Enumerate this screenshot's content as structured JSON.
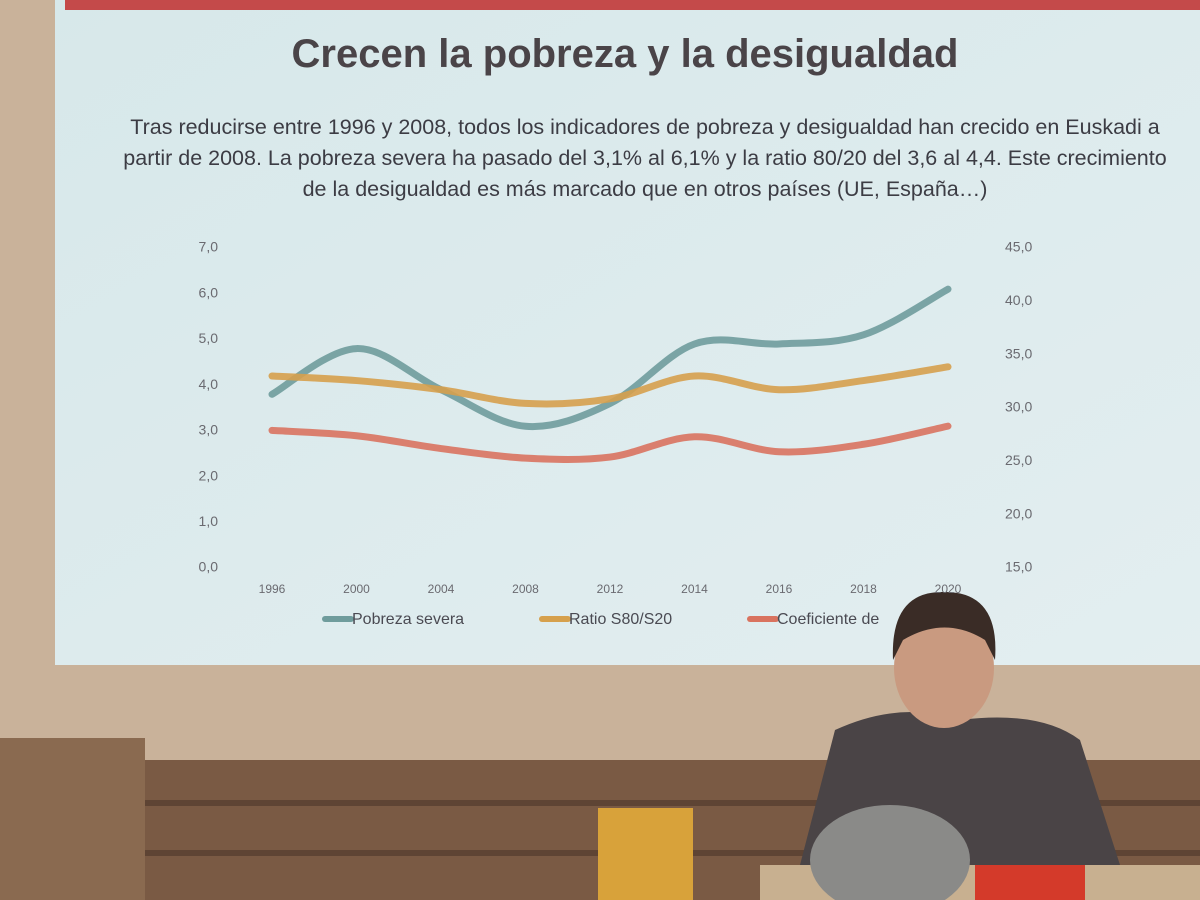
{
  "chart_data": {
    "type": "line",
    "title": "Crecen la pobreza y la desigualdad",
    "subtitle": "Tras reducirse entre 1996 y 2008, todos los indicadores de pobreza y desigualdad han crecido en Euskadi a partir de 2008. La pobreza severa ha pasado del 3,1% al 6,1% y la ratio 80/20 del 3,6 al 4,4. Este crecimiento de la desigualdad es más marcado que en otros países (UE, España…)",
    "categories": [
      "1996",
      "2000",
      "2004",
      "2008",
      "2012",
      "2014",
      "2016",
      "2018",
      "2020"
    ],
    "series": [
      {
        "name": "Pobreza severa",
        "color": "#6f9c9c",
        "values": [
          3.8,
          4.8,
          3.9,
          3.1,
          3.6,
          4.9,
          4.9,
          5.1,
          6.1
        ]
      },
      {
        "name": "Ratio S80/S20",
        "color": "#d6a04c",
        "values": [
          4.2,
          4.1,
          3.9,
          3.6,
          3.7,
          4.2,
          3.9,
          4.1,
          4.4
        ]
      },
      {
        "name": "Coeficiente de",
        "color": "#d9735f",
        "axis": "y2",
        "values": [
          27.9,
          27.4,
          26.2,
          25.3,
          25.4,
          27.3,
          25.9,
          26.6,
          28.3
        ]
      }
    ],
    "ylim": [
      0,
      7
    ],
    "yticks": [
      {
        "value": 0,
        "label": "0,0"
      },
      {
        "value": 1,
        "label": "1,0"
      },
      {
        "value": 2,
        "label": "2,0"
      },
      {
        "value": 3,
        "label": "3,0"
      },
      {
        "value": 4,
        "label": "4,0"
      },
      {
        "value": 5,
        "label": "5,0"
      },
      {
        "value": 6,
        "label": "6,0"
      },
      {
        "value": 7,
        "label": "7,0"
      }
    ],
    "y2lim": [
      15,
      45
    ],
    "y2ticks": [
      {
        "value": 15,
        "label": "15,0"
      },
      {
        "value": 20,
        "label": "20,0"
      },
      {
        "value": 25,
        "label": "25,0"
      },
      {
        "value": 30,
        "label": "30,0"
      },
      {
        "value": 35,
        "label": "35,0"
      },
      {
        "value": 40,
        "label": "40,0"
      },
      {
        "value": 45,
        "label": "45,0"
      }
    ]
  }
}
